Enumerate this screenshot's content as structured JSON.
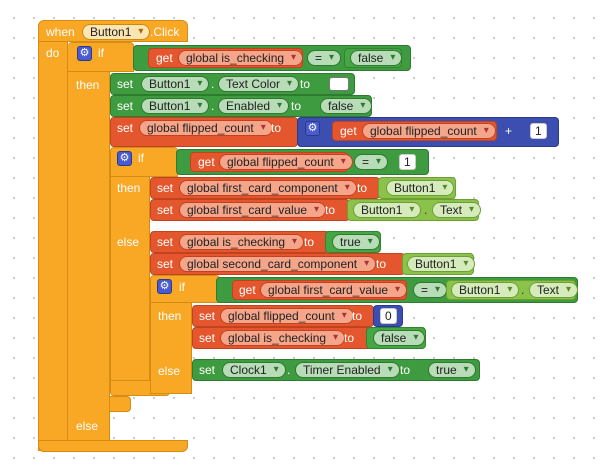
{
  "event": {
    "when": "when",
    "component": "Button1",
    "event_name": ".Click"
  },
  "kw": {
    "do": "do",
    "if": "if",
    "then": "then",
    "else": "else",
    "set": "set",
    "get": "get",
    "to": "to",
    "eq": "=",
    "plus": "+",
    "dot": "."
  },
  "vars": {
    "is_checking": "global is_checking",
    "flipped_count": "global flipped_count",
    "first_card_component": "global first_card_component",
    "first_card_value": "global first_card_value",
    "second_card_component": "global second_card_component"
  },
  "components": {
    "button1": "Button1",
    "clock1": "Clock1"
  },
  "props": {
    "text_color": "Text Color",
    "enabled": "Enabled",
    "text": "Text",
    "timer_enabled": "Timer Enabled"
  },
  "values": {
    "false": "false",
    "true": "true",
    "one": "1",
    "zero": "0"
  },
  "colors": {
    "event": "#f9a825",
    "control": "#f9a825",
    "setter": "#3f9b3f",
    "variable": "#e4572e",
    "math": "#3c4fb1",
    "component": "#8bc34a"
  }
}
